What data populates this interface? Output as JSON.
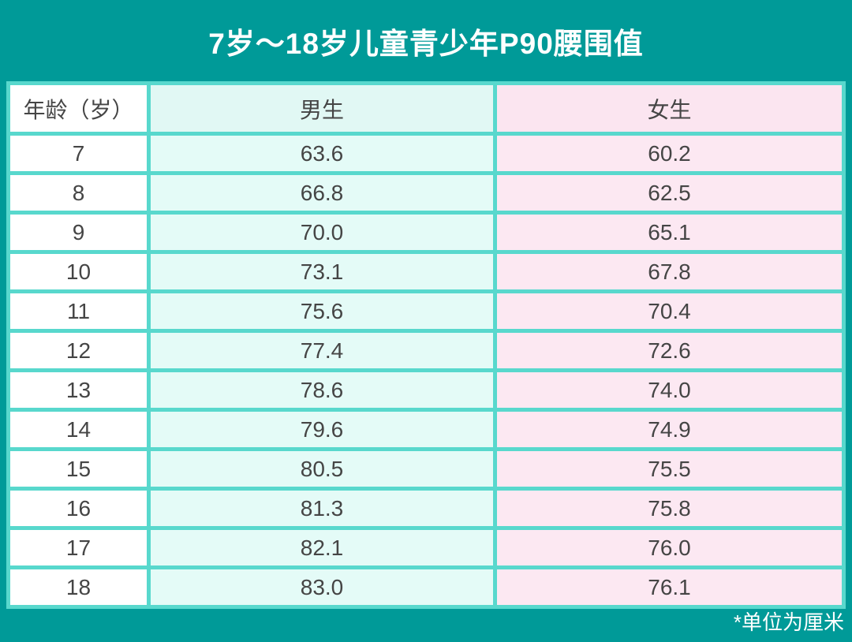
{
  "title": "7岁～18岁儿童青少年P90腰围值",
  "footnote": "*单位为厘米",
  "colors": {
    "background_teal": "#009A98",
    "grid_turquoise": "#58D8CD",
    "age_column_white": "#FFFFFF",
    "boys_column_mint": "#E4FBF7",
    "girls_column_pink": "#FCE8F2",
    "value_text": "#454545",
    "title_text": "#FFFFFF"
  },
  "table": {
    "headers": {
      "age": "年龄（岁）",
      "boys": "男生",
      "girls": "女生"
    },
    "rows": [
      {
        "age": "7",
        "boys": "63.6",
        "girls": "60.2"
      },
      {
        "age": "8",
        "boys": "66.8",
        "girls": "62.5"
      },
      {
        "age": "9",
        "boys": "70.0",
        "girls": "65.1"
      },
      {
        "age": "10",
        "boys": "73.1",
        "girls": "67.8"
      },
      {
        "age": "11",
        "boys": "75.6",
        "girls": "70.4"
      },
      {
        "age": "12",
        "boys": "77.4",
        "girls": "72.6"
      },
      {
        "age": "13",
        "boys": "78.6",
        "girls": "74.0"
      },
      {
        "age": "14",
        "boys": "79.6",
        "girls": "74.9"
      },
      {
        "age": "15",
        "boys": "80.5",
        "girls": "75.5"
      },
      {
        "age": "16",
        "boys": "81.3",
        "girls": "75.8"
      },
      {
        "age": "17",
        "boys": "82.1",
        "girls": "76.0"
      },
      {
        "age": "18",
        "boys": "83.0",
        "girls": "76.1"
      }
    ]
  },
  "chart_data": {
    "type": "table",
    "title": "7岁～18岁儿童青少年P90腰围值",
    "unit_note": "*单位为厘米",
    "columns": [
      "年龄（岁）",
      "男生",
      "女生"
    ],
    "ages": [
      7,
      8,
      9,
      10,
      11,
      12,
      13,
      14,
      15,
      16,
      17,
      18
    ],
    "series": [
      {
        "name": "男生",
        "values": [
          63.6,
          66.8,
          70.0,
          73.1,
          75.6,
          77.4,
          78.6,
          79.6,
          80.5,
          81.3,
          82.1,
          83.0
        ]
      },
      {
        "name": "女生",
        "values": [
          60.2,
          62.5,
          65.1,
          67.8,
          70.4,
          72.6,
          74.0,
          74.9,
          75.5,
          75.8,
          76.0,
          76.1
        ]
      }
    ]
  }
}
